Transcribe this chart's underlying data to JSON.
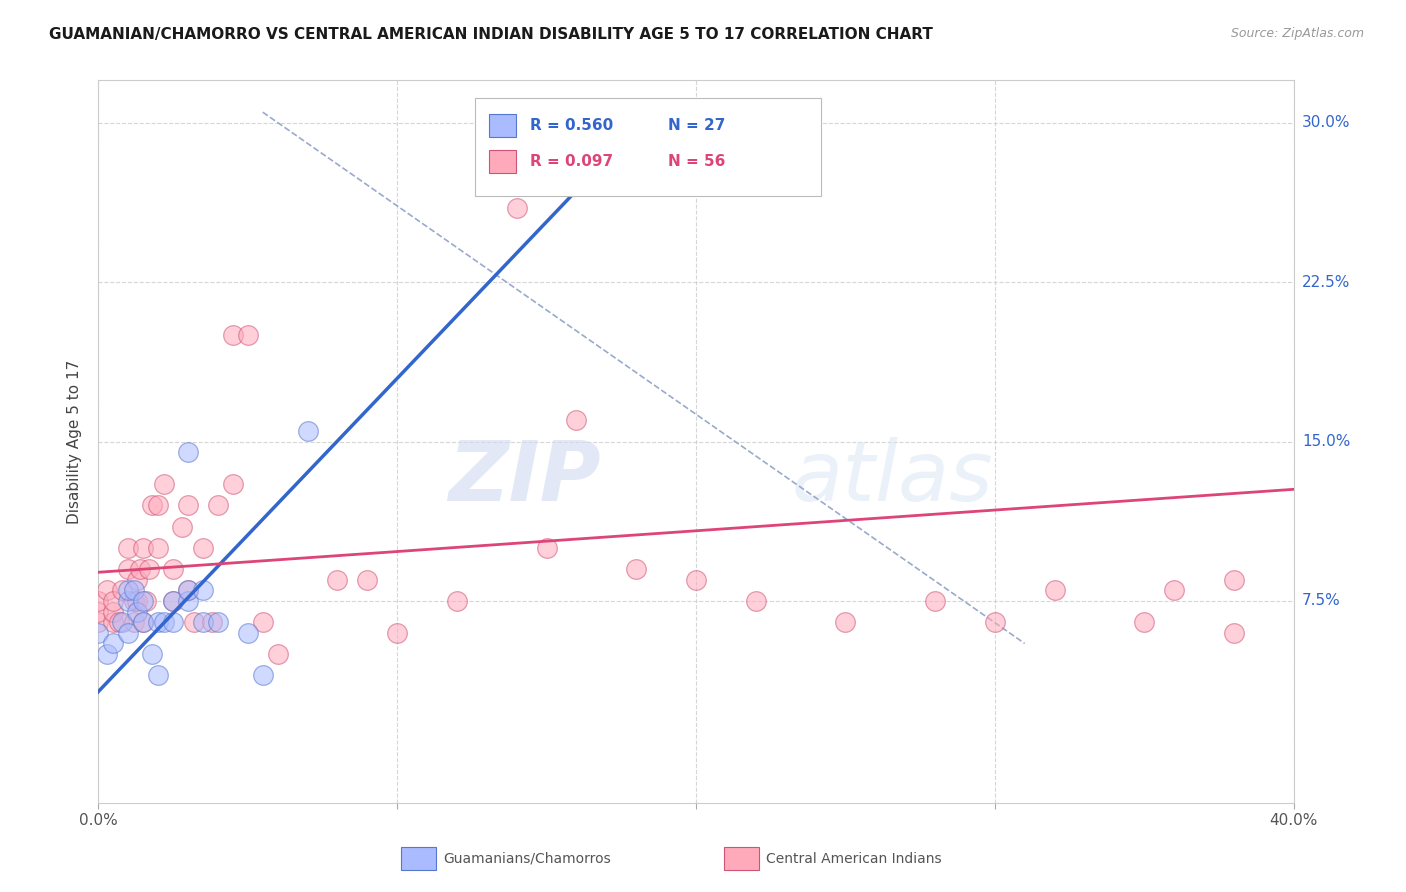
{
  "title": "GUAMANIAN/CHAMORRO VS CENTRAL AMERICAN INDIAN DISABILITY AGE 5 TO 17 CORRELATION CHART",
  "source": "Source: ZipAtlas.com",
  "ylabel": "Disability Age 5 to 17",
  "xlim": [
    0.0,
    0.4
  ],
  "ylim": [
    -0.02,
    0.32
  ],
  "xticks": [
    0.0,
    0.1,
    0.2,
    0.3,
    0.4
  ],
  "xticklabels": [
    "0.0%",
    "",
    "",
    "",
    "40.0%"
  ],
  "yticks": [
    0.075,
    0.15,
    0.225,
    0.3
  ],
  "yticklabels": [
    "7.5%",
    "15.0%",
    "22.5%",
    "30.0%"
  ],
  "grid_color": "#cccccc",
  "background_color": "#ffffff",
  "blue_R": 0.56,
  "blue_N": 27,
  "pink_R": 0.097,
  "pink_N": 56,
  "blue_fill_color": "#aabbff",
  "pink_fill_color": "#ffaabb",
  "blue_edge_color": "#5577cc",
  "pink_edge_color": "#cc5577",
  "blue_line_color": "#3366cc",
  "pink_line_color": "#dd4477",
  "diag_line_color": "#99aacc",
  "blue_scatter_x": [
    0.0,
    0.003,
    0.005,
    0.008,
    0.01,
    0.01,
    0.01,
    0.012,
    0.013,
    0.015,
    0.015,
    0.018,
    0.02,
    0.02,
    0.022,
    0.025,
    0.025,
    0.03,
    0.03,
    0.03,
    0.035,
    0.035,
    0.04,
    0.05,
    0.055,
    0.07,
    0.17
  ],
  "blue_scatter_y": [
    0.06,
    0.05,
    0.055,
    0.065,
    0.075,
    0.08,
    0.06,
    0.08,
    0.07,
    0.065,
    0.075,
    0.05,
    0.04,
    0.065,
    0.065,
    0.065,
    0.075,
    0.075,
    0.08,
    0.145,
    0.065,
    0.08,
    0.065,
    0.06,
    0.04,
    0.155,
    0.28
  ],
  "pink_scatter_x": [
    0.0,
    0.0,
    0.0,
    0.003,
    0.005,
    0.005,
    0.005,
    0.007,
    0.008,
    0.01,
    0.01,
    0.012,
    0.012,
    0.013,
    0.013,
    0.014,
    0.015,
    0.015,
    0.016,
    0.017,
    0.018,
    0.02,
    0.02,
    0.022,
    0.025,
    0.025,
    0.028,
    0.03,
    0.03,
    0.032,
    0.035,
    0.038,
    0.04,
    0.045,
    0.045,
    0.05,
    0.055,
    0.06,
    0.08,
    0.09,
    0.1,
    0.12,
    0.14,
    0.15,
    0.2,
    0.22,
    0.25,
    0.28,
    0.3,
    0.32,
    0.35,
    0.36,
    0.38,
    0.38,
    0.16,
    0.18
  ],
  "pink_scatter_y": [
    0.065,
    0.07,
    0.075,
    0.08,
    0.065,
    0.07,
    0.075,
    0.065,
    0.08,
    0.09,
    0.1,
    0.065,
    0.075,
    0.075,
    0.085,
    0.09,
    0.065,
    0.1,
    0.075,
    0.09,
    0.12,
    0.12,
    0.1,
    0.13,
    0.075,
    0.09,
    0.11,
    0.08,
    0.12,
    0.065,
    0.1,
    0.065,
    0.12,
    0.13,
    0.2,
    0.2,
    0.065,
    0.05,
    0.085,
    0.085,
    0.06,
    0.075,
    0.26,
    0.1,
    0.085,
    0.075,
    0.065,
    0.075,
    0.065,
    0.08,
    0.065,
    0.08,
    0.06,
    0.085,
    0.16,
    0.09
  ],
  "blue_trend_x": [
    -0.005,
    0.185
  ],
  "blue_trend_y": [
    0.025,
    0.305
  ],
  "pink_trend_x": [
    -0.005,
    0.405
  ],
  "pink_trend_y": [
    0.088,
    0.128
  ],
  "diag_line_x": [
    0.055,
    0.31
  ],
  "diag_line_y": [
    0.305,
    0.055
  ],
  "watermark_zip": "ZIP",
  "watermark_atlas": "atlas",
  "legend_label_blue": "Guamanians/Chamorros",
  "legend_label_pink": "Central American Indians"
}
